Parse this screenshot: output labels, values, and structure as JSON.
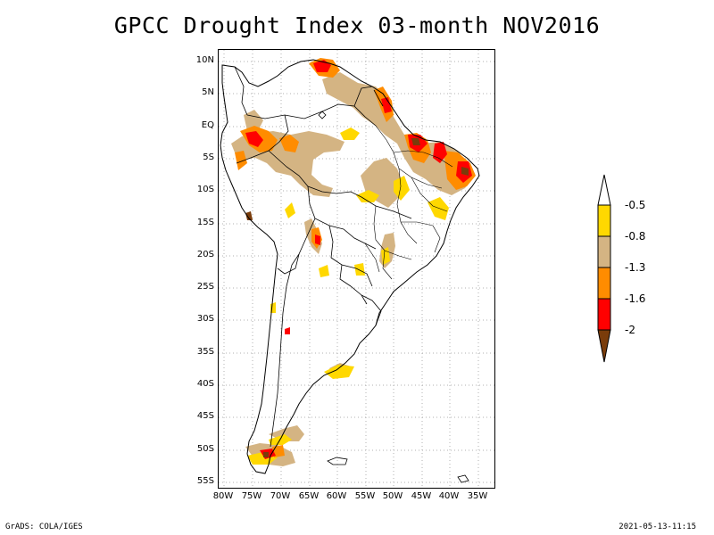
{
  "title": "GPCC Drought Index 03-month NOV2016",
  "lat_labels": [
    "10N",
    "5N",
    "EQ",
    "5S",
    "10S",
    "15S",
    "20S",
    "25S",
    "30S",
    "35S",
    "40S",
    "45S",
    "50S",
    "55S"
  ],
  "lon_labels": [
    "80W",
    "75W",
    "70W",
    "65W",
    "60W",
    "55W",
    "50W",
    "45W",
    "40W",
    "35W"
  ],
  "legend": {
    "labels": [
      "-0.5",
      "-0.8",
      "-1.3",
      "-1.6",
      "-2"
    ],
    "colors": {
      "above": "#ffffff",
      "band_05_08": "#ffd800",
      "band_08_13": "#d4b483",
      "band_13_16": "#ff8c00",
      "band_16_2": "#ff0000",
      "below_2": "#7a3c0a"
    }
  },
  "footer": {
    "left": "GrADS: COLA/IGES",
    "right": "2021-05-13-11:15"
  }
}
